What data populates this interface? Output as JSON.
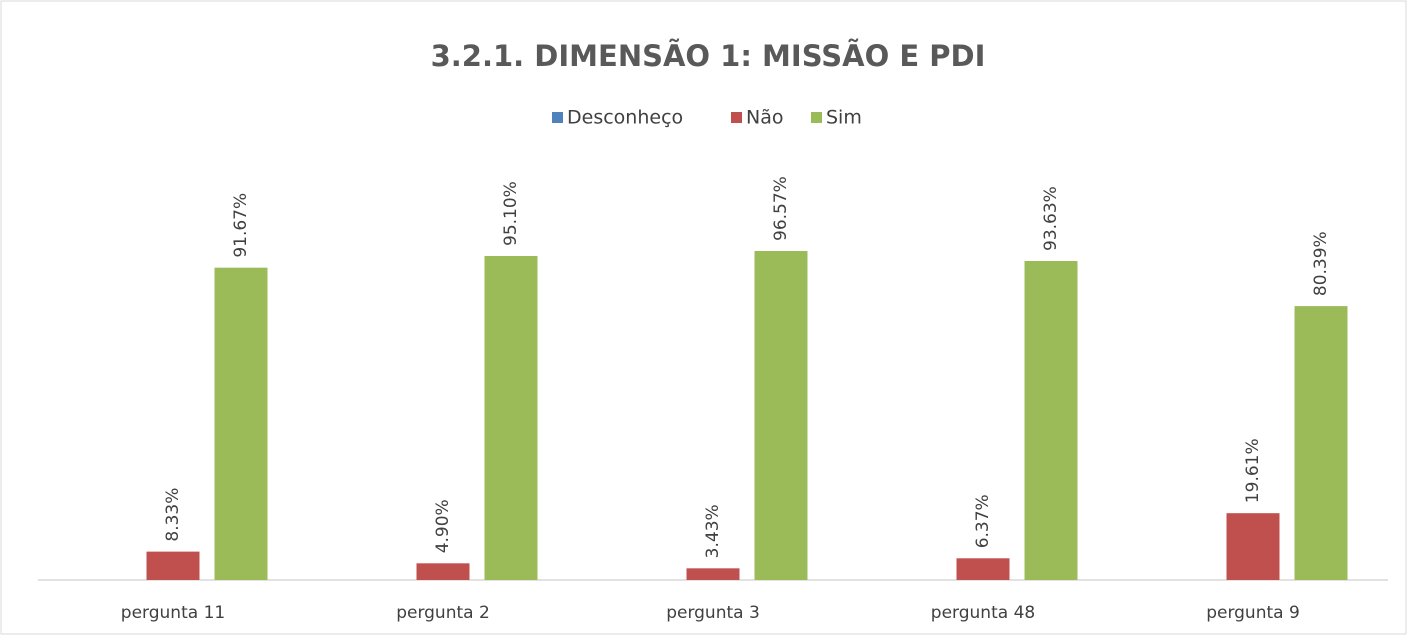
{
  "chart_data": {
    "type": "bar",
    "title": "3.2.1. DIMENSÃO 1: MISSÃO E PDI",
    "categories": [
      "pergunta 11",
      "pergunta 2",
      "pergunta 3",
      "pergunta 48",
      "pergunta 9"
    ],
    "series": [
      {
        "name": "Desconheço",
        "color": "#4f81bd",
        "values": [
          0,
          0,
          0,
          0,
          0
        ]
      },
      {
        "name": "Não",
        "color": "#c0504d",
        "values": [
          8.33,
          4.9,
          3.43,
          6.37,
          19.61
        ],
        "value_labels": [
          "8.33%",
          "4.90%",
          "3.43%",
          "6.37%",
          "19.61%"
        ]
      },
      {
        "name": "Sim",
        "color": "#9bbb59",
        "values": [
          91.67,
          95.1,
          96.57,
          93.63,
          80.39
        ],
        "value_labels": [
          "91.67%",
          "95.10%",
          "96.57%",
          "93.63%",
          "80.39%"
        ]
      }
    ],
    "legend": "top"
  }
}
